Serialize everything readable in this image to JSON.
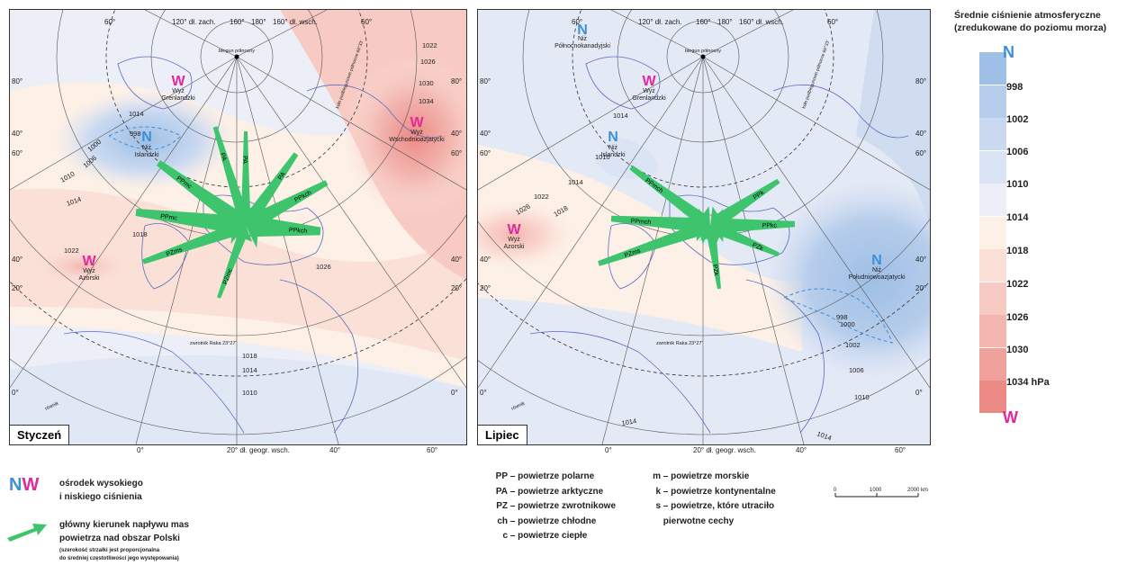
{
  "maps": [
    {
      "id": "jan",
      "label": "Styczeń",
      "top_axis": [
        "60°",
        "120° dł. zach.",
        "160°",
        "180°",
        "160° dł. wsch.",
        "60°"
      ],
      "bottom_axis": [
        "0°",
        "20° dł. geogr. wsch.",
        "40°",
        "60°"
      ],
      "left_lat": [
        "80°",
        "40°",
        "60°",
        "40°",
        "20°",
        "0°"
      ],
      "right_lat": [
        "80°",
        "40°",
        "60°",
        "40°",
        "20°",
        "0°"
      ],
      "pole_label": "biegun północny",
      "tropic_label": "zwrotnik Raka 23°27'",
      "equator_label": "równik",
      "circle_label": "koło podbiegunowe północne 66°33'",
      "centers": [
        {
          "letter": "W",
          "name": "Wyż\nGrenlandzki",
          "kind": "high"
        },
        {
          "letter": "N",
          "name": "Niż\nIslandzki",
          "kind": "low"
        },
        {
          "letter": "W",
          "name": "Wyż\nWschodnioazjatycki",
          "kind": "high"
        },
        {
          "letter": "W",
          "name": "Wyż\nAzorski",
          "kind": "high"
        }
      ],
      "isobars": [
        "1014",
        "998",
        "1000",
        "1006",
        "1010",
        "1014",
        "1018",
        "1022",
        "1026",
        "1022",
        "1026",
        "1030",
        "1034",
        "1018",
        "1014",
        "1010"
      ],
      "arrows": [
        "PA",
        "PA",
        "PPmc",
        "PA",
        "PPkch",
        "PPmc",
        "PPkch",
        "PZms",
        "PZmc"
      ]
    },
    {
      "id": "jul",
      "label": "Lipiec",
      "top_axis": [
        "60°",
        "120° dł. zach.",
        "160°",
        "180°",
        "160° dł. wsch.",
        "60°"
      ],
      "bottom_axis": [
        "0°",
        "20° dł. geogr. wsch.",
        "40°",
        "60°"
      ],
      "left_lat": [
        "80°",
        "40°",
        "60°",
        "40°",
        "20°",
        "0°"
      ],
      "right_lat": [
        "80°",
        "40°",
        "60°",
        "40°",
        "20°",
        "0°"
      ],
      "pole_label": "biegun północny",
      "tropic_label": "zwrotnik Raka 23°27'",
      "equator_label": "równik",
      "circle_label": "koło podbiegunowe północne 66°33'",
      "centers": [
        {
          "letter": "N",
          "name": "Niż\nPółnocnokanadyjski",
          "kind": "low"
        },
        {
          "letter": "W",
          "name": "Wyż\nGrenlandzki",
          "kind": "high"
        },
        {
          "letter": "N",
          "name": "Niż\nIslandzki",
          "kind": "low"
        },
        {
          "letter": "W",
          "name": "Wyż\nAzorski",
          "kind": "high"
        },
        {
          "letter": "N",
          "name": "Niż\nPołudniowoazjatycki",
          "kind": "low"
        }
      ],
      "isobars": [
        "1014",
        "1010",
        "1014",
        "1022",
        "1026",
        "1018",
        "998",
        "1000",
        "1002",
        "1006",
        "1010",
        "1014",
        "1014"
      ],
      "arrows": [
        "PPmch",
        "PPk",
        "PPmch",
        "PPkc",
        "PZk",
        "PZms",
        "PZk"
      ]
    }
  ],
  "scale": {
    "title_line1": "Średnie ciśnienie atmosferyczne",
    "title_line2": "(zredukowane do poziomu morza)",
    "low_letter": "N",
    "high_letter": "W",
    "labels": [
      "998",
      "1002",
      "1006",
      "1010",
      "1014",
      "1018",
      "1022",
      "1026",
      "1030",
      "1034 hPa"
    ],
    "colors": [
      "#9ebfe6",
      "#b6cdeb",
      "#cad9f0",
      "#dbe4f4",
      "#eceef8",
      "#fdf0e6",
      "#fbe0d8",
      "#f7cbc4",
      "#f3b6b0",
      "#f0a19c",
      "#ec8a86"
    ]
  },
  "legend": {
    "nw_text_line1": "ośrodek wysokiego",
    "nw_text_line2": "i niskiego ciśnienia",
    "arrow_text_line1": "główny kierunek napływu mas",
    "arrow_text_line2": "powietrza nad obszar Polski",
    "arrow_note_line1": "(szerokość strzałki jest proporcjonalna",
    "arrow_note_line2": "do średniej częstotliwości jego występowania)",
    "codes_left": [
      {
        "code": "PP",
        "desc": "powietrze polarne"
      },
      {
        "code": "PA",
        "desc": "powietrze arktyczne"
      },
      {
        "code": "PZ",
        "desc": "powietrze zwrotnikowe"
      },
      {
        "code": "ch",
        "desc": "powietrze chłodne"
      },
      {
        "code": "c",
        "desc": "powietrze ciepłe"
      }
    ],
    "codes_right": [
      {
        "code": "m",
        "desc": "powietrze morskie"
      },
      {
        "code": "k",
        "desc": "powietrze kontynentalne"
      },
      {
        "code": "s",
        "desc": "powietrze, które utraciło"
      },
      {
        "code": "",
        "desc": "pierwotne cechy"
      }
    ],
    "scalebar": [
      "0",
      "1000",
      "2000 km"
    ]
  },
  "colors": {
    "high": "#e2289a",
    "low": "#3f8fd6",
    "arrow": "#3ec46d",
    "graticule": "#555555",
    "coast": "#5a6bc0"
  }
}
